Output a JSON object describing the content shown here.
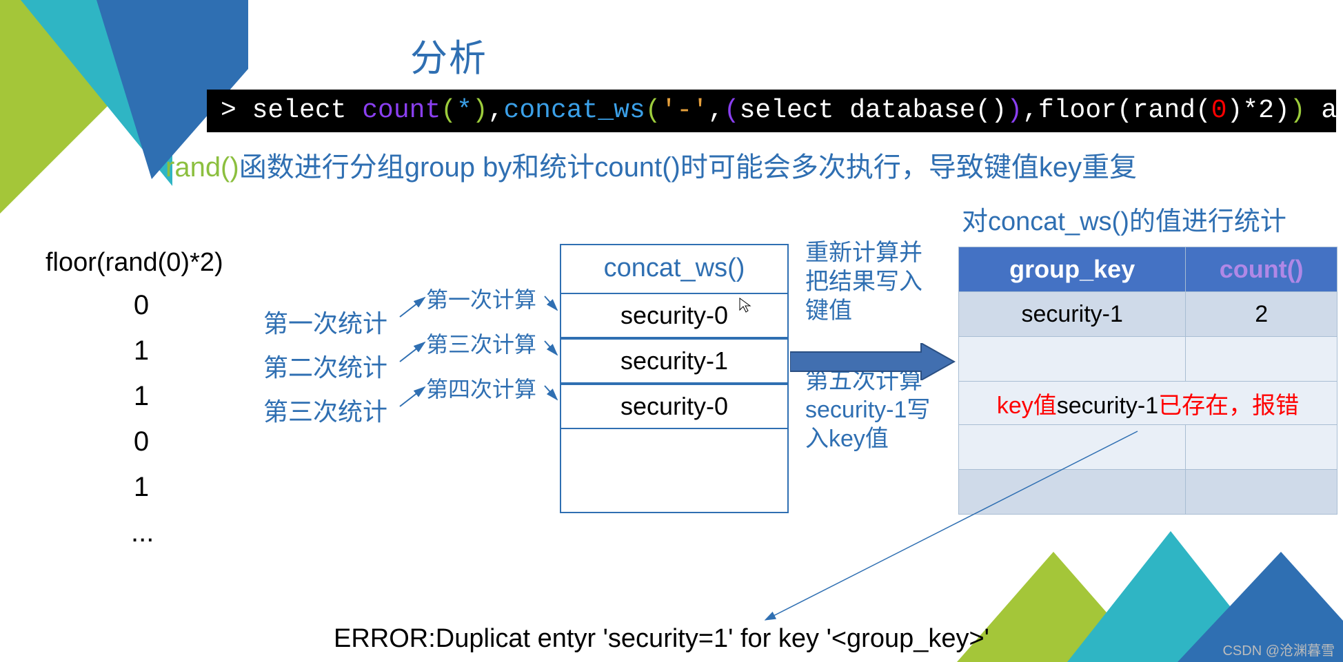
{
  "title": "分析",
  "sql": {
    "prompt": "> ",
    "select": "select ",
    "count": "count",
    "paren_open1": "(",
    "star": "*",
    "paren_close1": ")",
    "comma1": ",",
    "concat_ws": "concat_ws",
    "paren_open2": "(",
    "dash": "'-'",
    "comma2": ",",
    "paren_open3": "(",
    "select_db": "select database()",
    "paren_close3": ")",
    "comma3": ",",
    "floor": "floor(rand(",
    "zero": "0",
    "floor_tail": ")*2)",
    "paren_close2": ")",
    "tail": " as a from users group by a;"
  },
  "explain": {
    "rand": "rand()",
    "rest": "函数进行分组group by和统计count()时可能会多次执行，导致键值key重复"
  },
  "floor_label": "floor(rand(0)*2)",
  "floor_values": [
    "0",
    "1",
    "1",
    "0",
    "1",
    "..."
  ],
  "stats": [
    "第一次统计",
    "第二次统计",
    "第三次统计"
  ],
  "calcs": {
    "c1": "第一次计算",
    "c3": "第三次计算",
    "c4": "第四次计算"
  },
  "concat": {
    "header": "concat_ws()",
    "rows": [
      "security-0",
      "security-1",
      "security-0"
    ]
  },
  "note1": "重新计算并\n把结果写入\n键值",
  "note2": "第五次计算\nsecurity-1写\n入key值",
  "gb_title": "对concat_ws()的值进行统计",
  "res": {
    "col1": "group_key",
    "col2": "count()",
    "row1_key": "security-1",
    "row1_cnt": "2",
    "err_pre": "key值",
    "err_mid": "security-1",
    "err_post": "已存在，报错"
  },
  "error_text": "ERROR:Duplicat entyr 'security=1' for key '<group_key>'",
  "watermark": "CSDN @沧渊暮雪",
  "colors": {
    "brand_blue": "#2f6fb2",
    "accent_green": "#a4c639",
    "accent_teal": "#2fb5c4",
    "arrow_fill": "#416fb0"
  }
}
